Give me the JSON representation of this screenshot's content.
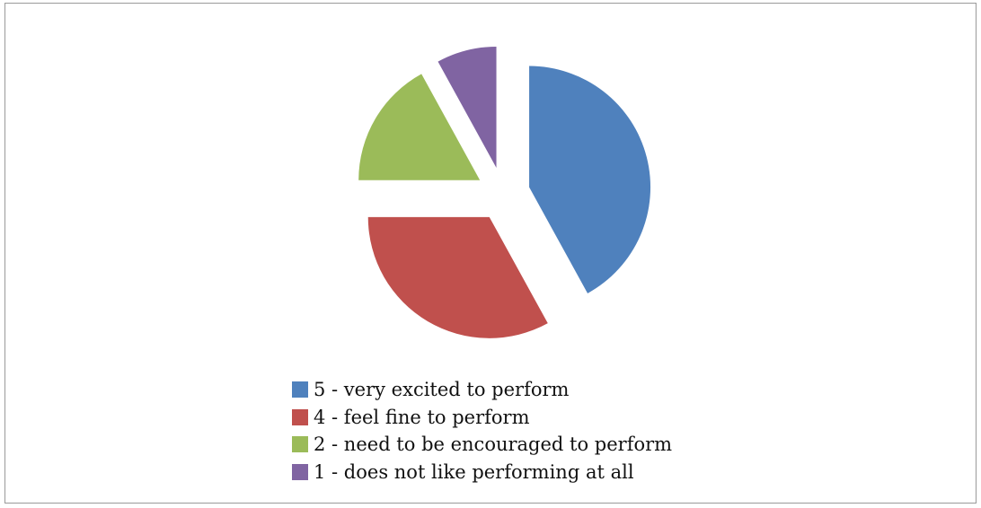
{
  "chart_data": {
    "type": "pie",
    "exploded": true,
    "title": "",
    "legend_position": "bottom",
    "slices": [
      {
        "label": "5 - very excited to perform",
        "value": 42,
        "color": "#4F81BD"
      },
      {
        "label": "4 - feel fine to perform",
        "value": 33,
        "color": "#C0504D"
      },
      {
        "label": "2 - need to be encouraged to perform",
        "value": 17,
        "color": "#9BBB59"
      },
      {
        "label": "1 - does not like performing at all",
        "value": 8,
        "color": "#8064A2"
      }
    ]
  }
}
